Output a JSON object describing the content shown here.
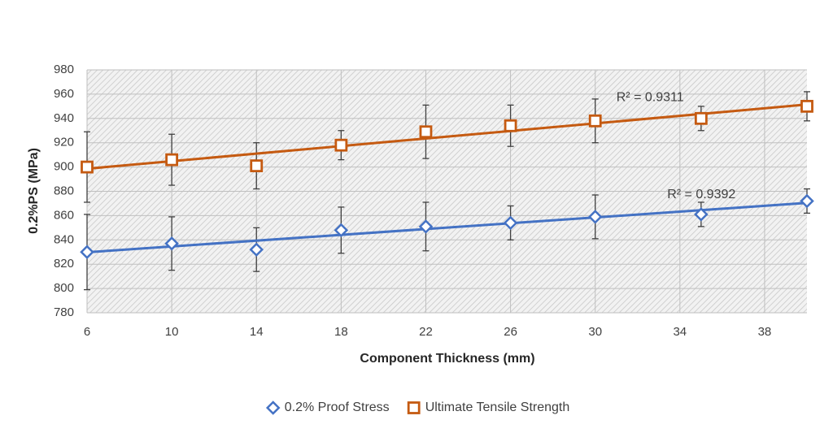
{
  "chart_data": {
    "type": "line",
    "x_label": "Component Thickness (mm)",
    "y_label": "0.2%PS (MPa)",
    "x": [
      6,
      10,
      14,
      18,
      22,
      26,
      30,
      35,
      40
    ],
    "series": [
      {
        "name": "0.2% Proof Stress",
        "color": "#4472c4",
        "marker": "diamond",
        "trendline": true,
        "values": [
          830,
          837,
          832,
          848,
          851,
          854,
          859,
          861,
          872
        ],
        "errors": [
          31,
          22,
          18,
          19,
          20,
          14,
          18,
          10,
          10
        ]
      },
      {
        "name": "Ultimate Tensile Strength",
        "color": "#c55a11",
        "marker": "square",
        "trendline": true,
        "values": [
          900,
          906,
          901,
          918,
          929,
          934,
          938,
          940,
          950
        ],
        "errors": [
          29,
          21,
          19,
          12,
          22,
          17,
          18,
          10,
          12
        ]
      }
    ],
    "annotations": [
      {
        "text": "R² = 0.9311",
        "x": 31,
        "y": 957
      },
      {
        "text": "R² = 0.9392",
        "x": 33.4,
        "y": 877
      }
    ],
    "xlim": [
      6,
      40
    ],
    "xticks": [
      6,
      10,
      14,
      18,
      22,
      26,
      30,
      34,
      38
    ],
    "ylim": [
      780,
      980
    ],
    "yticks": [
      780,
      800,
      820,
      840,
      860,
      880,
      900,
      920,
      940,
      960,
      980
    ],
    "grid": true,
    "legend": "bottom"
  }
}
